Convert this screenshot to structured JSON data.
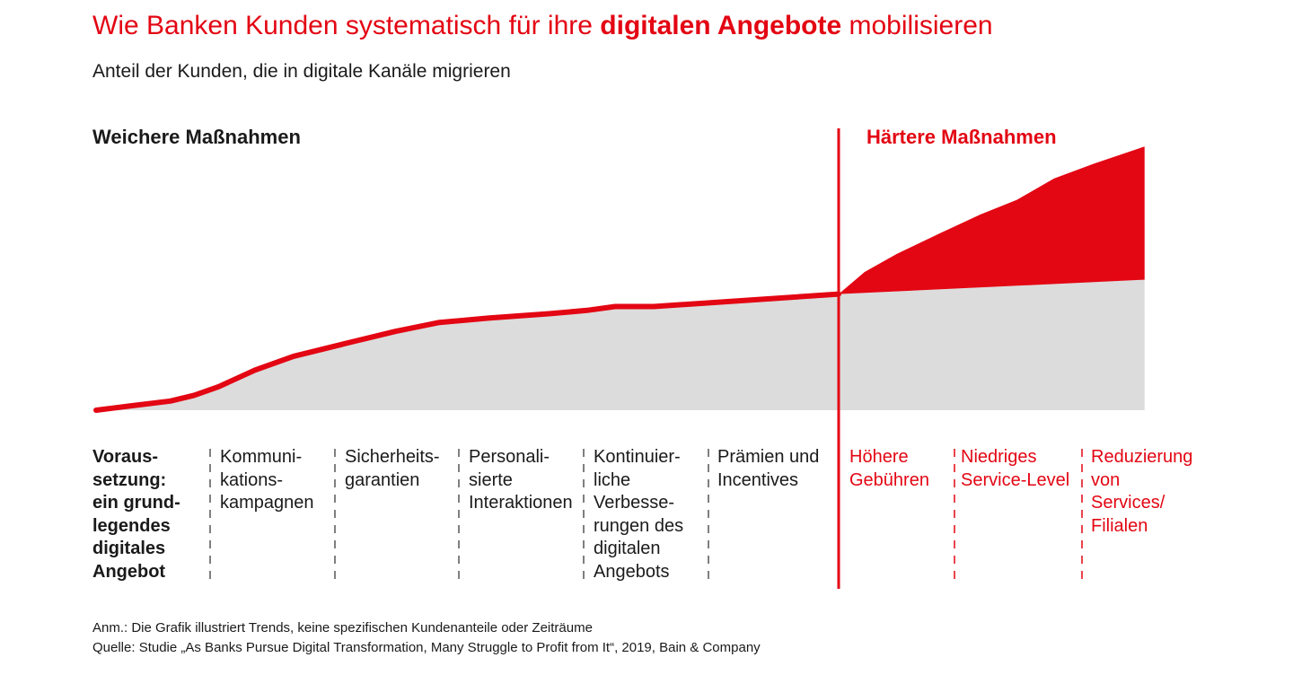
{
  "header": {
    "title_part1": "Wie Banken Kunden systematisch für ihre ",
    "title_bold": "digitalen Angebote",
    "title_part2": " mobilisieren",
    "subtitle": "Anteil der Kunden, die in digitale Kanäle migrieren"
  },
  "sections": {
    "soft": "Weichere Maßnahmen",
    "hard": "Härtere Maßnahmen"
  },
  "steps": [
    {
      "label": "Voraus-\nsetzung:\nein grund-\nlegendes\ndigitales\nAngebot",
      "group": "first"
    },
    {
      "label": "Kommuni-\nkations-\nkampagnen",
      "group": "soft"
    },
    {
      "label": "Sicherheits-\ngarantien",
      "group": "soft"
    },
    {
      "label": "Personali-\nsierte\nInteraktionen",
      "group": "soft"
    },
    {
      "label": "Kontinuier-\nliche\nVerbesse-\nrungen des\ndigitalen\nAngebots",
      "group": "soft"
    },
    {
      "label": "Prämien und\nIncentives",
      "group": "soft"
    },
    {
      "label": "Höhere\nGebühren",
      "group": "hard"
    },
    {
      "label": "Niedriges\nService-Level",
      "group": "hard"
    },
    {
      "label": "Reduzierung\nvon\nServices/\nFilialen",
      "group": "hard"
    }
  ],
  "notes": {
    "annotation": "Anm.: Die Grafik illustriert Trends, keine spezifischen Kundenanteile oder Zeiträume",
    "source": "Quelle: Studie „As Banks Pursue Digital Transformation, Many Struggle to Profit from It“, 2019, Bain & Company"
  },
  "colors": {
    "accent": "#e30613",
    "area_gray": "#dcdcdc",
    "text": "#1a1a1a",
    "divider": "#555555"
  },
  "chart_data": {
    "type": "area",
    "y_unit": "relative share (trend only, 0–1)",
    "soft_curve": {
      "x": [
        0,
        0.047,
        0.1,
        0.132,
        0.165,
        0.214,
        0.266,
        0.349,
        0.403,
        0.461,
        0.528,
        0.61,
        0.661,
        0.699,
        0.751,
        1.0
      ],
      "y": [
        0,
        0.016,
        0.033,
        0.054,
        0.085,
        0.145,
        0.195,
        0.25,
        0.285,
        0.317,
        0.333,
        0.349,
        0.361,
        0.375,
        0.375,
        0.42
      ]
    },
    "hard_curve_upper": {
      "x": [
        1.0,
        1.035,
        1.078,
        1.138,
        1.191,
        1.24,
        1.29,
        1.344,
        1.412
      ],
      "y": [
        0.42,
        0.5,
        0.565,
        0.642,
        0.708,
        0.761,
        0.838,
        0.892,
        0.954
      ]
    },
    "hard_curve_lower": {
      "x": [
        1.0,
        1.412
      ],
      "y": [
        0.42,
        0.472
      ]
    }
  }
}
